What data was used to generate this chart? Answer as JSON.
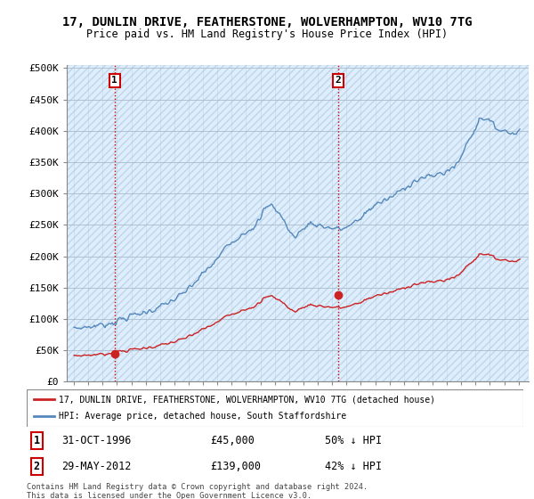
{
  "title": "17, DUNLIN DRIVE, FEATHERSTONE, WOLVERHAMPTON, WV10 7TG",
  "subtitle": "Price paid vs. HM Land Registry's House Price Index (HPI)",
  "legend_line1": "17, DUNLIN DRIVE, FEATHERSTONE, WOLVERHAMPTON, WV10 7TG (detached house)",
  "legend_line2": "HPI: Average price, detached house, South Staffordshire",
  "annotation1": {
    "label": "1",
    "date": "31-OCT-1996",
    "price": 45000,
    "pct": "50% ↓ HPI"
  },
  "annotation2": {
    "label": "2",
    "date": "29-MAY-2012",
    "price": 139000,
    "pct": "42% ↓ HPI"
  },
  "footnote": "Contains HM Land Registry data © Crown copyright and database right 2024.\nThis data is licensed under the Open Government Licence v3.0.",
  "ytick_labels": [
    "£0",
    "£50K",
    "£100K",
    "£150K",
    "£200K",
    "£250K",
    "£300K",
    "£350K",
    "£400K",
    "£450K",
    "£500K"
  ],
  "yticks": [
    0,
    50000,
    100000,
    150000,
    200000,
    250000,
    300000,
    350000,
    400000,
    450000,
    500000
  ],
  "hpi_color": "#5588bb",
  "sale_color": "#cc2222",
  "vline_color": "#cc0000",
  "marker1_x": 1996.833,
  "marker1_y": 45000,
  "marker2_x": 2012.416,
  "marker2_y": 139000,
  "grid_color": "#bbccdd",
  "bg_color": "#ddeeff",
  "hatch_color": "#c8d8e8",
  "xlim_left": 1993.5,
  "xlim_right": 2025.7
}
